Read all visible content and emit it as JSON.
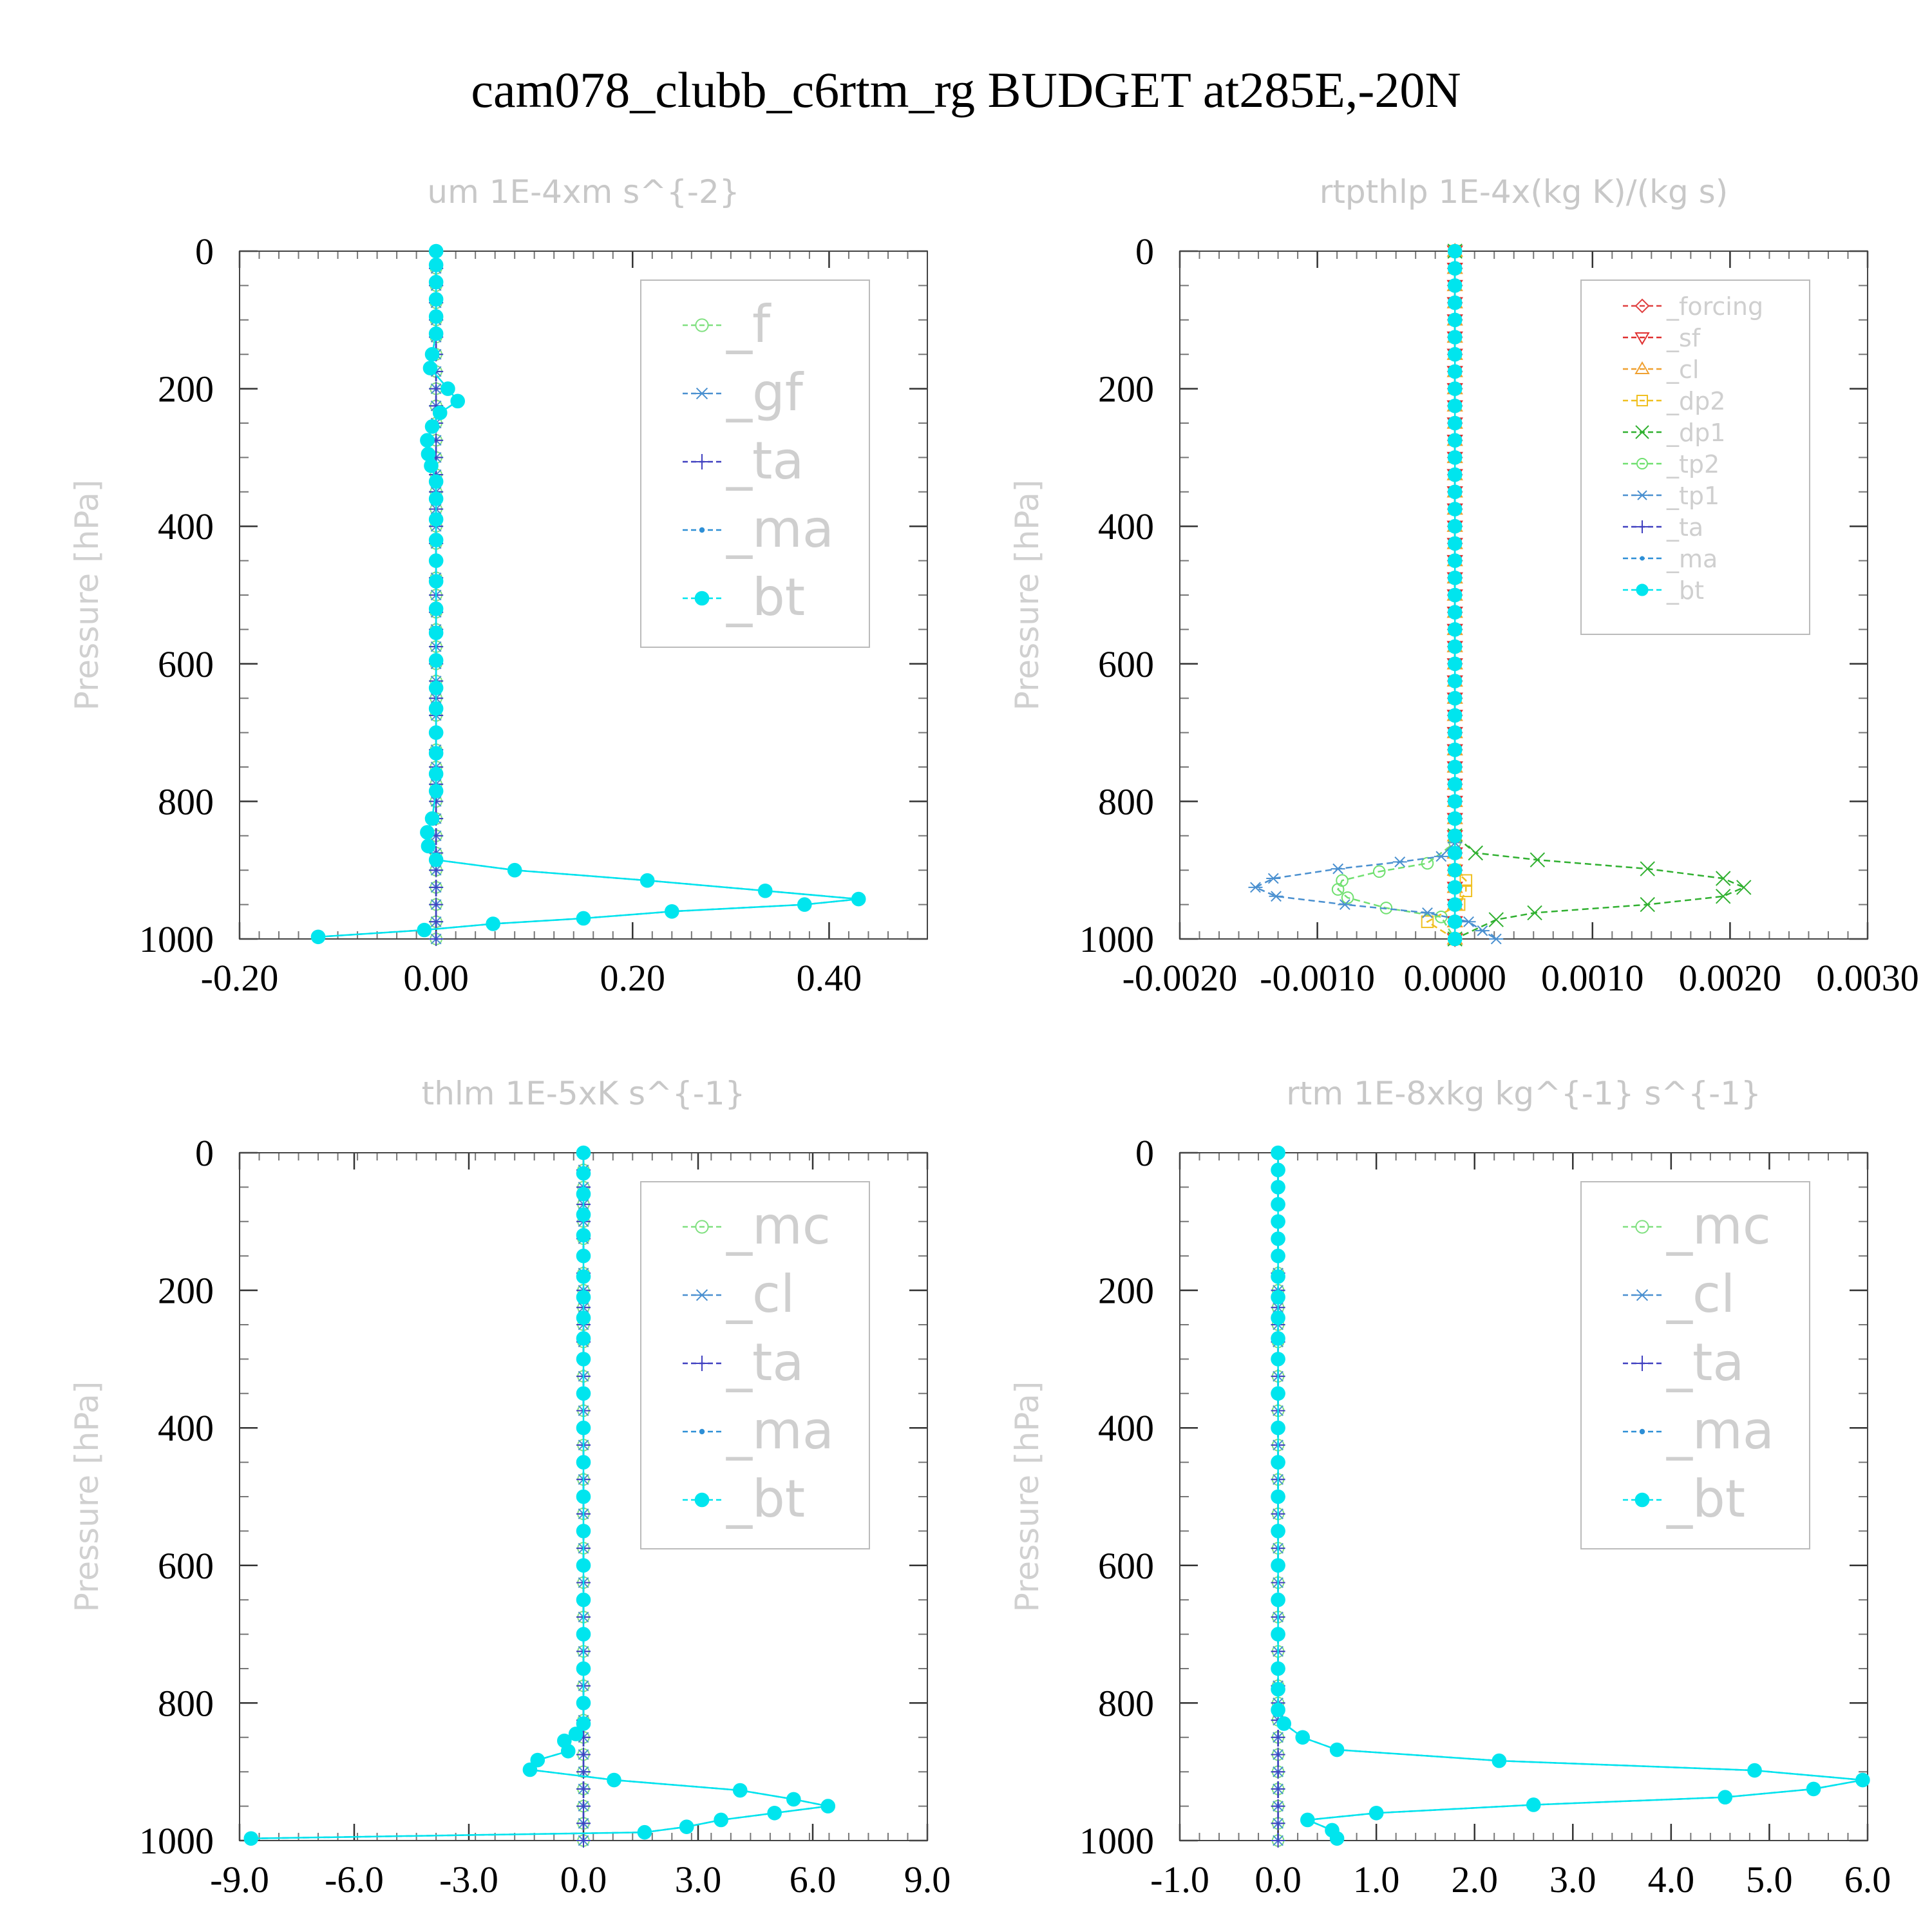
{
  "figure": {
    "title": "cam078_clubb_c6rtm_rg  BUDGET at285E,-20N"
  },
  "chart_data": [
    {
      "type": "line",
      "title": "um  1E-4xm s^{-2}",
      "ylabel": "Pressure [hPa]",
      "ylim": [
        1000,
        0
      ],
      "xlim": [
        -0.2,
        0.5
      ],
      "xticks": [
        -0.2,
        0.0,
        0.2,
        0.4
      ],
      "xtick_labels": [
        "-0.20",
        "0.00",
        "0.20",
        "0.40"
      ],
      "yticks": [
        0,
        200,
        400,
        600,
        800,
        1000
      ],
      "ytick_labels": [
        "0",
        "200",
        "400",
        "600",
        "800",
        "1000"
      ],
      "legend_position": "top-right",
      "legend_size": "large",
      "series": [
        {
          "name": "_f",
          "color": "#80e080",
          "marker": "circle-open",
          "x": [
            0,
            0
          ],
          "y": [
            0,
            1000
          ]
        },
        {
          "name": "_gf",
          "color": "#4a90d0",
          "marker": "asterisk",
          "x": [
            0,
            0
          ],
          "y": [
            0,
            1000
          ]
        },
        {
          "name": "_ta",
          "color": "#4040c0",
          "marker": "plus",
          "x": [
            0,
            0
          ],
          "y": [
            0,
            1000
          ]
        },
        {
          "name": "_ma",
          "color": "#2e8fd6",
          "marker": "dot",
          "x": [
            0,
            0,
            0,
            0,
            0,
            0,
            -0.004,
            -0.006,
            0.012,
            0.022,
            0.004,
            -0.004,
            -0.009,
            -0.008,
            -0.005,
            0,
            0,
            0,
            0,
            0,
            0,
            0,
            0,
            0,
            0,
            0,
            0,
            0,
            0,
            0,
            -0.004,
            -0.009,
            -0.008,
            0,
            0.08,
            0.215,
            0.335,
            0.43,
            0.375,
            0.24,
            0.15,
            0.058,
            -0.012,
            -0.12
          ],
          "y": [
            0,
            20,
            45,
            70,
            95,
            120,
            150,
            170,
            200,
            218,
            235,
            255,
            275,
            295,
            312,
            335,
            360,
            390,
            420,
            450,
            480,
            520,
            555,
            595,
            635,
            665,
            700,
            730,
            760,
            785,
            825,
            845,
            865,
            885,
            900,
            915,
            930,
            942,
            950,
            960,
            970,
            978,
            987,
            997
          ]
        },
        {
          "name": "_bt",
          "color": "#00e5ee",
          "marker": "dot-filled",
          "x": [
            0,
            0,
            0,
            0,
            0,
            0,
            -0.004,
            -0.006,
            0.012,
            0.022,
            0.004,
            -0.004,
            -0.009,
            -0.008,
            -0.005,
            0,
            0,
            0,
            0,
            0,
            0,
            0,
            0,
            0,
            0,
            0,
            0,
            0,
            0,
            0,
            -0.004,
            -0.009,
            -0.008,
            0,
            0.08,
            0.215,
            0.335,
            0.43,
            0.375,
            0.24,
            0.15,
            0.058,
            -0.012,
            -0.12
          ],
          "y": [
            0,
            20,
            45,
            70,
            95,
            120,
            150,
            170,
            200,
            218,
            235,
            255,
            275,
            295,
            312,
            335,
            360,
            390,
            420,
            450,
            480,
            520,
            555,
            595,
            635,
            665,
            700,
            730,
            760,
            785,
            825,
            845,
            865,
            885,
            900,
            915,
            930,
            942,
            950,
            960,
            970,
            978,
            987,
            997
          ]
        }
      ]
    },
    {
      "type": "line",
      "title": "rtpthlp  1E-4x(kg K)/(kg s)",
      "ylabel": "Pressure [hPa]",
      "ylim": [
        1000,
        0
      ],
      "xlim": [
        -0.002,
        0.003
      ],
      "xticks": [
        -0.002,
        -0.001,
        0.0,
        0.001,
        0.002,
        0.003
      ],
      "xtick_labels": [
        "-0.0020",
        "-0.0010",
        "0.0000",
        "0.0010",
        "0.0020",
        "0.0030"
      ],
      "yticks": [
        0,
        200,
        400,
        600,
        800,
        1000
      ],
      "ytick_labels": [
        "0",
        "200",
        "400",
        "600",
        "800",
        "1000"
      ],
      "legend_position": "top-right",
      "legend_size": "small",
      "series": [
        {
          "name": "_forcing",
          "color": "#e04040",
          "marker": "diamond-open",
          "x": [
            0,
            0
          ],
          "y": [
            0,
            1000
          ]
        },
        {
          "name": "_sf",
          "color": "#e03030",
          "marker": "triangle-down-open",
          "x": [
            0,
            0
          ],
          "y": [
            0,
            1000
          ]
        },
        {
          "name": "_cl",
          "color": "#f0a030",
          "marker": "triangle-up-open",
          "x": [
            0,
            0
          ],
          "y": [
            0,
            1000
          ]
        },
        {
          "name": "_dp2",
          "color": "#f0c020",
          "marker": "square-open",
          "x": [
            0,
            0,
            0,
            8e-05,
            8e-05,
            3e-05,
            -0.0002,
            0
          ],
          "y": [
            0,
            850,
            900,
            915,
            930,
            950,
            975,
            1000
          ]
        },
        {
          "name": "_dp1",
          "color": "#30b030",
          "marker": "cross",
          "x": [
            0,
            0,
            0.00015,
            0.0006,
            0.0014,
            0.00195,
            0.0021,
            0.00195,
            0.0014,
            0.00058,
            0.0003,
            0
          ],
          "y": [
            0,
            850,
            875,
            885,
            898,
            912,
            925,
            938,
            950,
            962,
            972,
            1000
          ]
        },
        {
          "name": "_tp2",
          "color": "#70e070",
          "marker": "circle-open",
          "x": [
            0,
            0,
            -0.0002,
            -0.00055,
            -0.00082,
            -0.00085,
            -0.00078,
            -0.0005,
            -0.0001,
            0
          ],
          "y": [
            0,
            860,
            890,
            902,
            915,
            928,
            940,
            955,
            968,
            1000
          ]
        },
        {
          "name": "_tp1",
          "color": "#4a90d0",
          "marker": "asterisk",
          "x": [
            0,
            0,
            -0.0001,
            -0.0004,
            -0.00085,
            -0.00132,
            -0.00145,
            -0.0013,
            -0.0008,
            -0.0002,
            0.0001,
            0.0002,
            0.0003
          ],
          "y": [
            0,
            860,
            880,
            888,
            898,
            912,
            925,
            938,
            950,
            962,
            975,
            988,
            1000
          ]
        },
        {
          "name": "_ta",
          "color": "#4040c0",
          "marker": "plus",
          "x": [
            0,
            0
          ],
          "y": [
            0,
            1000
          ]
        },
        {
          "name": "_ma",
          "color": "#2e8fd6",
          "marker": "dot",
          "x": [
            0,
            0
          ],
          "y": [
            0,
            1000
          ]
        },
        {
          "name": "_bt",
          "color": "#00e5ee",
          "marker": "dot-filled",
          "x": [
            0,
            0
          ],
          "y": [
            0,
            1000
          ]
        }
      ]
    },
    {
      "type": "line",
      "title": "thlm  1E-5xK s^{-1}",
      "ylabel": "Pressure [hPa]",
      "ylim": [
        1000,
        0
      ],
      "xlim": [
        -9.0,
        9.0
      ],
      "xticks": [
        -9.0,
        -6.0,
        -3.0,
        0.0,
        3.0,
        6.0,
        9.0
      ],
      "xtick_labels": [
        "-9.0",
        "-6.0",
        "-3.0",
        "0.0",
        "3.0",
        "6.0",
        "9.0"
      ],
      "yticks": [
        0,
        200,
        400,
        600,
        800,
        1000
      ],
      "ytick_labels": [
        "0",
        "200",
        "400",
        "600",
        "800",
        "1000"
      ],
      "legend_position": "top-right",
      "legend_size": "large",
      "series": [
        {
          "name": "_mc",
          "color": "#80e080",
          "marker": "circle-open",
          "x": [
            0,
            0
          ],
          "y": [
            0,
            1000
          ]
        },
        {
          "name": "_cl",
          "color": "#4a90d0",
          "marker": "asterisk",
          "x": [
            0,
            0
          ],
          "y": [
            0,
            1000
          ]
        },
        {
          "name": "_ta",
          "color": "#4040c0",
          "marker": "plus",
          "x": [
            0,
            0
          ],
          "y": [
            0,
            1000
          ]
        },
        {
          "name": "_ma",
          "color": "#2e8fd6",
          "marker": "dot",
          "x": [
            0,
            0,
            0,
            0,
            0,
            0,
            0,
            0,
            0,
            0,
            0,
            0,
            0,
            0,
            0,
            0,
            0,
            0,
            0,
            0,
            0,
            0,
            -0.2,
            -0.5,
            -0.4,
            -1.2,
            -1.4,
            0.8,
            4.1,
            5.5,
            6.4,
            5.0,
            3.6,
            2.7,
            1.6,
            -8.7
          ],
          "y": [
            0,
            30,
            60,
            90,
            120,
            150,
            180,
            210,
            240,
            270,
            300,
            350,
            400,
            450,
            500,
            550,
            600,
            650,
            700,
            750,
            800,
            830,
            845,
            855,
            870,
            883,
            897,
            912,
            927,
            940,
            950,
            960,
            970,
            980,
            988,
            997
          ]
        },
        {
          "name": "_bt",
          "color": "#00e5ee",
          "marker": "dot-filled",
          "x": [
            0,
            0,
            0,
            0,
            0,
            0,
            0,
            0,
            0,
            0,
            0,
            0,
            0,
            0,
            0,
            0,
            0,
            0,
            0,
            0,
            0,
            0,
            -0.2,
            -0.5,
            -0.4,
            -1.2,
            -1.4,
            0.8,
            4.1,
            5.5,
            6.4,
            5.0,
            3.6,
            2.7,
            1.6,
            -8.7
          ],
          "y": [
            0,
            30,
            60,
            90,
            120,
            150,
            180,
            210,
            240,
            270,
            300,
            350,
            400,
            450,
            500,
            550,
            600,
            650,
            700,
            750,
            800,
            830,
            845,
            855,
            870,
            883,
            897,
            912,
            927,
            940,
            950,
            960,
            970,
            980,
            988,
            997
          ]
        }
      ]
    },
    {
      "type": "line",
      "title": "rtm  1E-8xkg kg^{-1} s^{-1}",
      "ylabel": "Pressure [hPa]",
      "ylim": [
        1000,
        0
      ],
      "xlim": [
        -1.0,
        6.0
      ],
      "xticks": [
        -1.0,
        0.0,
        1.0,
        2.0,
        3.0,
        4.0,
        5.0,
        6.0
      ],
      "xtick_labels": [
        "-1.0",
        "0.0",
        "1.0",
        "2.0",
        "3.0",
        "4.0",
        "5.0",
        "6.0"
      ],
      "yticks": [
        0,
        200,
        400,
        600,
        800,
        1000
      ],
      "ytick_labels": [
        "0",
        "200",
        "400",
        "600",
        "800",
        "1000"
      ],
      "legend_position": "top-right",
      "legend_size": "large",
      "series": [
        {
          "name": "_mc",
          "color": "#80e080",
          "marker": "circle-open",
          "x": [
            0,
            0
          ],
          "y": [
            0,
            1000
          ]
        },
        {
          "name": "_cl",
          "color": "#4a90d0",
          "marker": "asterisk",
          "x": [
            0,
            0
          ],
          "y": [
            0,
            1000
          ]
        },
        {
          "name": "_ta",
          "color": "#4040c0",
          "marker": "plus",
          "x": [
            0,
            0
          ],
          "y": [
            0,
            1000
          ]
        },
        {
          "name": "_ma",
          "color": "#2e8fd6",
          "marker": "dot",
          "x": [
            0,
            0,
            0,
            0,
            0,
            0,
            0,
            0,
            0,
            0,
            0,
            0,
            0,
            0,
            0,
            0,
            0,
            0,
            0,
            0,
            0,
            0,
            0,
            0.06,
            0.25,
            0.6,
            2.25,
            4.85,
            5.95,
            5.45,
            4.55,
            2.6,
            1.0,
            0.3,
            0.55,
            0.6
          ],
          "y": [
            0,
            25,
            50,
            75,
            100,
            125,
            150,
            180,
            210,
            240,
            270,
            300,
            350,
            400,
            450,
            500,
            550,
            600,
            650,
            700,
            750,
            780,
            810,
            830,
            850,
            868,
            884,
            898,
            912,
            925,
            937,
            948,
            960,
            970,
            985,
            997
          ]
        },
        {
          "name": "_bt",
          "color": "#00e5ee",
          "marker": "dot-filled",
          "x": [
            0,
            0,
            0,
            0,
            0,
            0,
            0,
            0,
            0,
            0,
            0,
            0,
            0,
            0,
            0,
            0,
            0,
            0,
            0,
            0,
            0,
            0,
            0,
            0.06,
            0.25,
            0.6,
            2.25,
            4.85,
            5.95,
            5.45,
            4.55,
            2.6,
            1.0,
            0.3,
            0.55,
            0.6
          ],
          "y": [
            0,
            25,
            50,
            75,
            100,
            125,
            150,
            180,
            210,
            240,
            270,
            300,
            350,
            400,
            450,
            500,
            550,
            600,
            650,
            700,
            750,
            780,
            810,
            830,
            850,
            868,
            884,
            898,
            912,
            925,
            937,
            948,
            960,
            970,
            985,
            997
          ]
        }
      ]
    }
  ]
}
